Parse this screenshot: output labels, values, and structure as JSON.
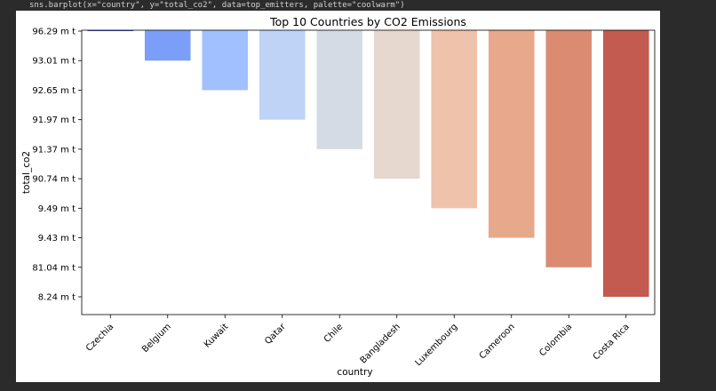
{
  "cell": {
    "code": "sns.barplot(x=\"country\", y=\"total_co2\", data=top_emitters, palette=\"coolwarm\")"
  },
  "chart_data": {
    "type": "bar",
    "title": "Top 10 Countries by CO2 Emissions",
    "xlabel": "country",
    "ylabel": "total_co2",
    "categories": [
      "Czechia",
      "Belgium",
      "Kuwait",
      "Qatar",
      "Chile",
      "Bangladesh",
      "Luxembourg",
      "Cameroon",
      "Colombia",
      "Costa Rica"
    ],
    "y_tick_labels": [
      "96.29 m t",
      "93.01 m t",
      "92.65 m t",
      "91.97 m t",
      "91.37 m t",
      "90.74 m t",
      "9.49 m t",
      "9.43 m t",
      "81.04 m t",
      "8.24 m t"
    ],
    "values_category_index": [
      0,
      1,
      2,
      3,
      4,
      5,
      6,
      7,
      8,
      9
    ],
    "y_axis": "categorical (string tick labels, inverted: first label at top)",
    "colors": [
      "#7b9ff9",
      "#7b9ff9",
      "#9ebeff",
      "#c0d4f5",
      "#dddcdc",
      "#f2cbb7",
      "#f7ac8e",
      "#ee8468",
      "#d65244",
      "#b40426"
    ],
    "bar_colors": [
      "#3b4cc0",
      "#7b9ff9",
      "#a1c0ff",
      "#bfd3f6",
      "#d5dbe5",
      "#e6d7cf",
      "#efc2ab",
      "#e7a88b",
      "#db8b72",
      "#c35b50"
    ],
    "grid": false
  }
}
